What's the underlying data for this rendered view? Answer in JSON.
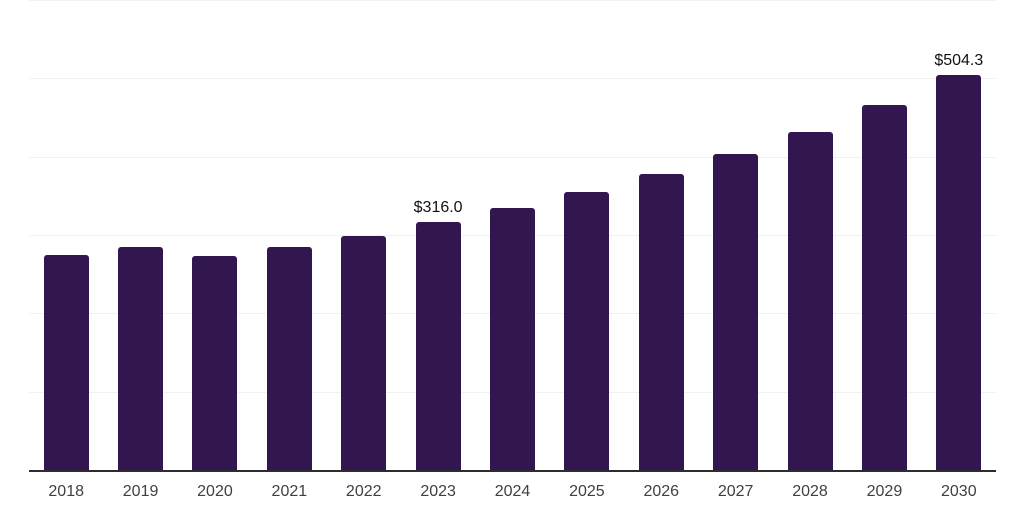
{
  "chart_data": {
    "type": "bar",
    "title": "",
    "xlabel": "",
    "ylabel": "",
    "categories": [
      "2018",
      "2019",
      "2020",
      "2021",
      "2022",
      "2023",
      "2024",
      "2025",
      "2026",
      "2027",
      "2028",
      "2029",
      "2030"
    ],
    "values": [
      273.9,
      284.1,
      272.6,
      284.1,
      298.9,
      316.0,
      334.3,
      355.1,
      378.5,
      403.2,
      431.6,
      466.2,
      504.3
    ],
    "point_labels": [
      "",
      "",
      "",
      "",
      "",
      "$316.0",
      "",
      "",
      "",
      "",
      "",
      "",
      "$504.3"
    ],
    "ylim": [
      0,
      600
    ],
    "gridline_step": 100,
    "grid": "horizontal",
    "legend": "none",
    "y_axis_tick_labels_visible": false,
    "colors": {
      "bar": "#311650",
      "axis_line": "#2d2d2d",
      "gridline": "#f1f1f1",
      "tick_label": "#404040",
      "value_label": "#121212",
      "background": "#ffffff"
    }
  }
}
